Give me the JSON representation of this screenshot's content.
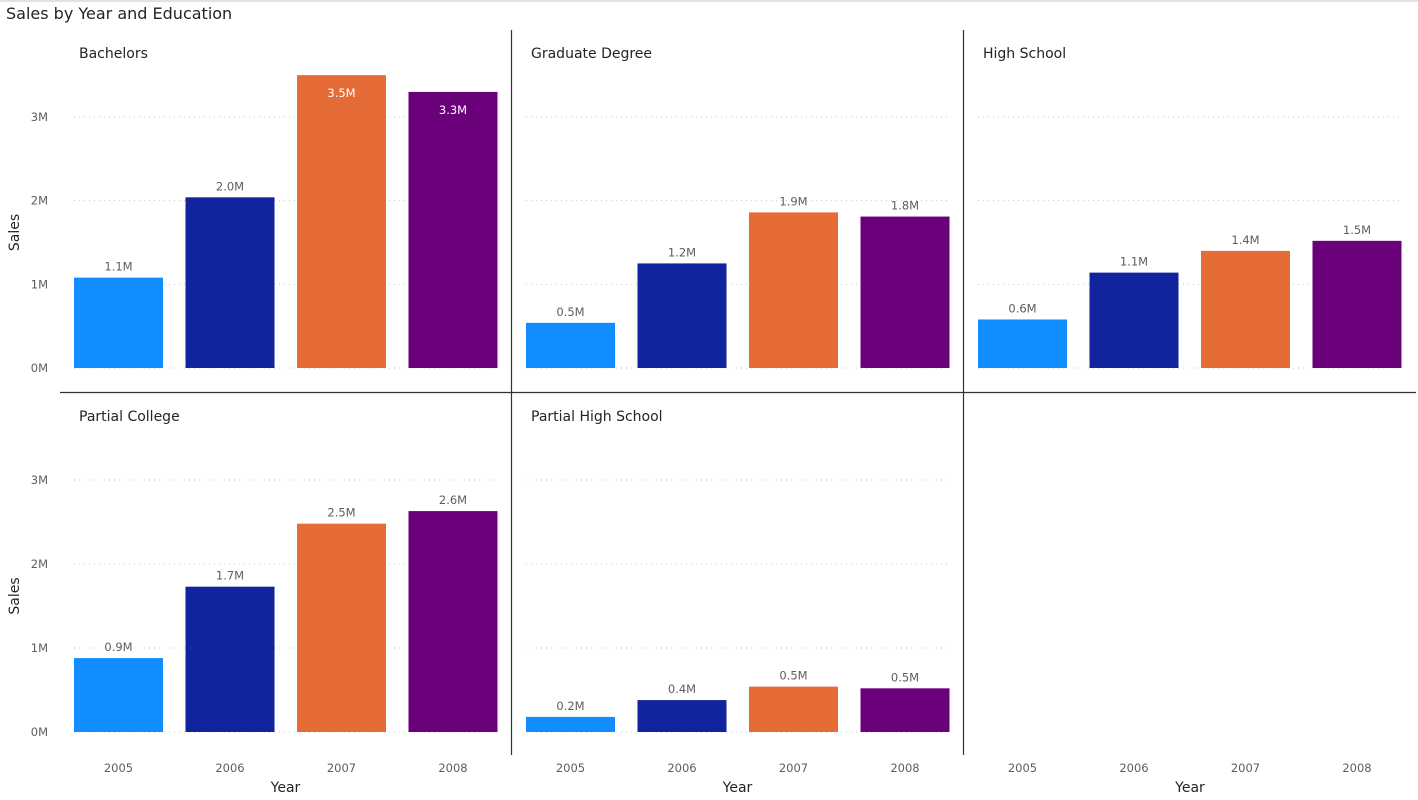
{
  "chart_data": {
    "type": "bar",
    "title": "Sales by Year and Education",
    "xlabel": "Year",
    "ylabel": "Sales",
    "ylim": [
      0,
      3500000
    ],
    "yticks": [
      {
        "value": 0,
        "label": "0M"
      },
      {
        "value": 1000000,
        "label": "1M"
      },
      {
        "value": 2000000,
        "label": "2M"
      },
      {
        "value": 3000000,
        "label": "3M"
      }
    ],
    "grid": true,
    "categories": [
      "2005",
      "2006",
      "2007",
      "2008"
    ],
    "category_colors": [
      "#118dff",
      "#12239e",
      "#e66c37",
      "#6b007b"
    ],
    "panels": [
      {
        "name": "Bachelors",
        "values": [
          1080000,
          2040000,
          3500000,
          3300000
        ],
        "labels": [
          "1.1M",
          "2.0M",
          "3.5M",
          "3.3M"
        ],
        "label_inside": [
          false,
          false,
          true,
          true
        ]
      },
      {
        "name": "Graduate Degree",
        "values": [
          540000,
          1250000,
          1860000,
          1810000
        ],
        "labels": [
          "0.5M",
          "1.2M",
          "1.9M",
          "1.8M"
        ],
        "label_inside": [
          false,
          false,
          false,
          false
        ]
      },
      {
        "name": "High School",
        "values": [
          580000,
          1140000,
          1400000,
          1520000
        ],
        "labels": [
          "0.6M",
          "1.1M",
          "1.4M",
          "1.5M"
        ],
        "label_inside": [
          false,
          false,
          false,
          false
        ]
      },
      {
        "name": "Partial College",
        "values": [
          880000,
          1730000,
          2480000,
          2630000
        ],
        "labels": [
          "0.9M",
          "1.7M",
          "2.5M",
          "2.6M"
        ],
        "label_inside": [
          false,
          false,
          false,
          false
        ]
      },
      {
        "name": "Partial High School",
        "values": [
          180000,
          380000,
          540000,
          520000
        ],
        "labels": [
          "0.2M",
          "0.4M",
          "0.5M",
          "0.5M"
        ],
        "label_inside": [
          false,
          false,
          false,
          false
        ]
      }
    ]
  }
}
